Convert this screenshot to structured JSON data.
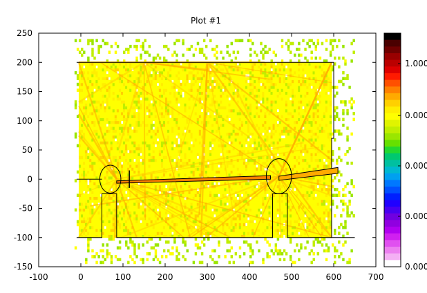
{
  "chart_data": {
    "type": "heatmap",
    "title": "Plot #1",
    "xlabel": "",
    "ylabel": "",
    "xlim": [
      -100,
      700
    ],
    "ylim": [
      -150,
      250
    ],
    "x_ticks": [
      "-100",
      "0",
      "100",
      "200",
      "300",
      "400",
      "500",
      "600",
      "700"
    ],
    "y_ticks": [
      "250",
      "200",
      "150",
      "100",
      "50",
      "0",
      "-50",
      "-100",
      "-150"
    ],
    "colorbar": {
      "tick_labels": [
        "1.000",
        "0.000",
        "0.000",
        "0.000",
        "0.000"
      ],
      "colors": [
        "#000000",
        "#4a0000",
        "#6e0000",
        "#990000",
        "#bb0000",
        "#dd0000",
        "#ff1a00",
        "#ff5000",
        "#ff8000",
        "#ffaa00",
        "#ffd000",
        "#ffee00",
        "#ffff00",
        "#e0f400",
        "#c0ee00",
        "#9ae600",
        "#66e000",
        "#22d830",
        "#00c870",
        "#00c0a0",
        "#00b8d0",
        "#00a0f0",
        "#0078ff",
        "#0050ff",
        "#0020ff",
        "#2000ff",
        "#4800f0",
        "#7000e0",
        "#9000e0",
        "#b000f0",
        "#d020f0",
        "#e050f0",
        "#ec80f0",
        "#f4b0f4",
        "#ffffff"
      ]
    },
    "field_colors": [
      "#ffff00",
      "#ffee00",
      "#ffd000",
      "#ffaa00",
      "#ff8000",
      "#c0ee00",
      "#9ae600"
    ],
    "geometry": {
      "walls": [
        [
          [
            -10,
            200
          ],
          [
            600,
            200
          ]
        ],
        [
          [
            -10,
            0
          ],
          [
            50,
            0
          ]
        ],
        [
          [
            -10,
            -100
          ],
          [
            50,
            -100
          ],
          [
            50,
            -25
          ],
          [
            85,
            -25
          ],
          [
            85,
            -100
          ],
          [
            455,
            -100
          ],
          [
            455,
            -25
          ],
          [
            490,
            -25
          ],
          [
            490,
            -100
          ],
          [
            650,
            -100
          ]
        ],
        [
          [
            600,
            200
          ],
          [
            600,
            70
          ],
          [
            595,
            70
          ],
          [
            595,
            -100
          ]
        ]
      ],
      "lenses": [
        {
          "cx": 70,
          "cy": 0,
          "rx": 25,
          "ry": 24
        },
        {
          "cx": 470,
          "cy": 5,
          "rx": 30,
          "ry": 30
        }
      ],
      "beam": [
        [
          85,
          -3
        ],
        [
          450,
          6
        ],
        [
          450,
          0
        ],
        [
          85,
          -7
        ]
      ],
      "beam_right": [
        [
          470,
          5
        ],
        [
          610,
          20
        ],
        [
          610,
          10
        ],
        [
          470,
          -2
        ]
      ],
      "ticks_x": [
        115
      ]
    }
  }
}
